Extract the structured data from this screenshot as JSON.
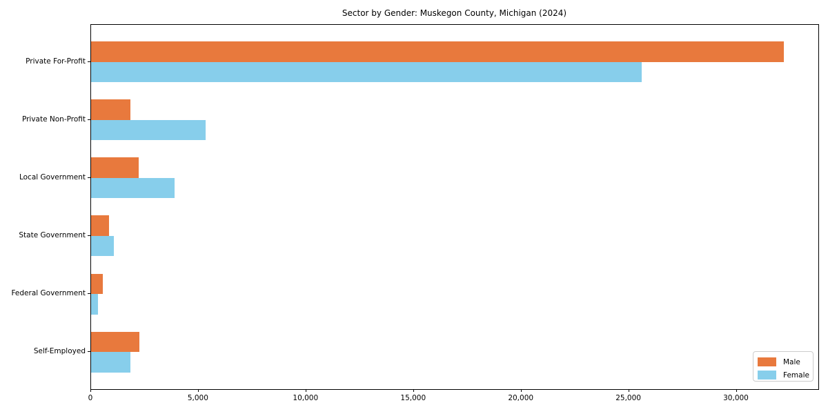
{
  "title": "Sector by Gender: Muskegon County, Michigan (2024)",
  "chart_data": {
    "type": "bar",
    "orientation": "horizontal",
    "title": "Sector by Gender: Muskegon County, Michigan (2024)",
    "categories": [
      "Private For-Profit",
      "Private Non-Profit",
      "Local Government",
      "State Government",
      "Federal Government",
      "Self-Employed"
    ],
    "series": [
      {
        "name": "Male",
        "color": "#e8793d",
        "values": [
          32200,
          1840,
          2210,
          820,
          550,
          2230
        ]
      },
      {
        "name": "Female",
        "color": "#87ceeb",
        "values": [
          25600,
          5330,
          3870,
          1060,
          310,
          1820
        ]
      }
    ],
    "xlabel": "",
    "ylabel": "",
    "xlim": [
      0,
      33800
    ],
    "xticks": [
      0,
      5000,
      10000,
      15000,
      20000,
      25000,
      30000
    ],
    "xtick_labels": [
      "0",
      "5,000",
      "10,000",
      "15,000",
      "20,000",
      "25,000",
      "30,000"
    ],
    "grid": false,
    "legend_position": "lower right",
    "legend_labels": [
      "Male",
      "Female"
    ]
  }
}
